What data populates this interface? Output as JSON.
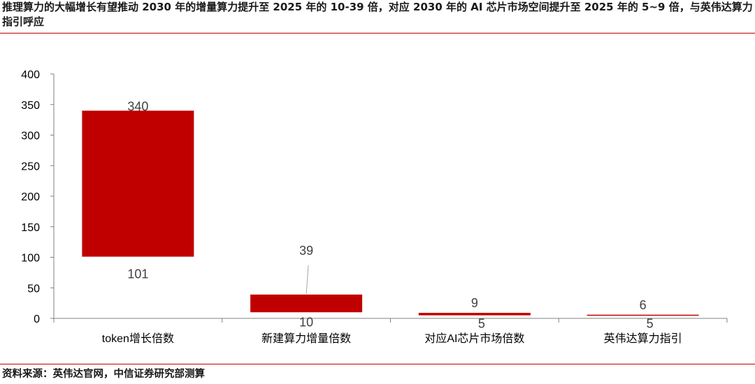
{
  "header": {
    "title": "推理算力的大幅增长有望推动 2030 年的增量算力提升至 2025 年的 10-39 倍，对应 2030 年的 AI 芯片市场空间提升至 2025 年的 5~9 倍，与英伟达算力指引呼应"
  },
  "footer": {
    "source": "资料来源：英伟达官网，中信证券研究部测算"
  },
  "colors": {
    "bar": "#c00000",
    "rule": "#c00000",
    "axis": "#808080",
    "label": "#404040"
  },
  "chart_data": {
    "type": "bar",
    "title": "",
    "xlabel": "",
    "ylabel": "",
    "ylim": [
      0,
      400
    ],
    "yticks": [
      "0",
      "50",
      "100",
      "150",
      "200",
      "250",
      "300",
      "350",
      "400"
    ],
    "grid": false,
    "legend": "none",
    "categories": [
      "token增长倍数",
      "新建算力增量倍数",
      "对应AI芯片市场倍数",
      "英伟达算力指引"
    ],
    "ranges": [
      {
        "low": 101,
        "high": 340
      },
      {
        "low": 10,
        "high": 39
      },
      {
        "low": 5,
        "high": 9
      },
      {
        "low": 5,
        "high": 6
      }
    ],
    "low_labels": [
      "101",
      "10",
      "5",
      "5"
    ],
    "high_labels": [
      "340",
      "39",
      "9",
      "6"
    ]
  }
}
